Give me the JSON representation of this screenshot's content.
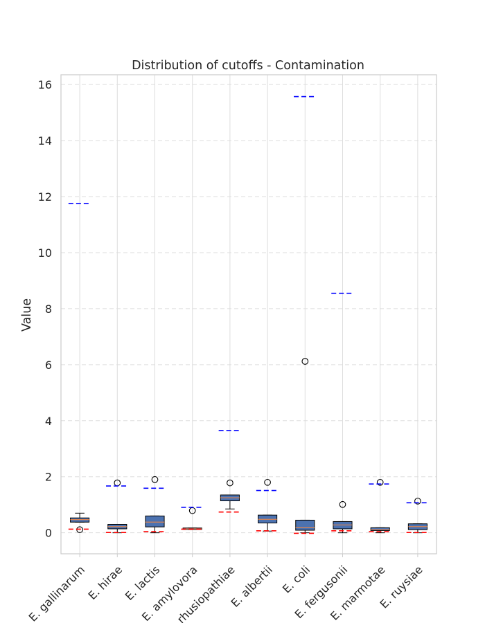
{
  "chart_data": {
    "type": "box",
    "title": "Distribution of cutoffs - Contamination",
    "xlabel": "",
    "ylabel": "Value",
    "ylim": [
      -0.75,
      16.35
    ],
    "yticks": [
      0,
      2,
      4,
      6,
      8,
      10,
      12,
      14,
      16
    ],
    "grid": true,
    "categories": [
      "E. gallinarum",
      "E. hirae",
      "E. lactis",
      "E. amylovora",
      "E. rhusiopathiae",
      "E. albertii",
      "E. coli",
      "E. fergusonii",
      "E. marmotae",
      "E. ruysiae"
    ],
    "boxes": [
      {
        "q1": 0.38,
        "median": 0.47,
        "q3": 0.53,
        "whisker_low": 0.38,
        "whisker_high": 0.7,
        "outliers": [
          0.11
        ]
      },
      {
        "q1": 0.14,
        "median": 0.22,
        "q3": 0.3,
        "whisker_low": 0.0,
        "whisker_high": 0.3,
        "outliers": [
          1.78
        ]
      },
      {
        "q1": 0.21,
        "median": 0.38,
        "q3": 0.6,
        "whisker_low": 0.0,
        "whisker_high": 0.6,
        "outliers": [
          1.9
        ]
      },
      {
        "q1": 0.12,
        "median": 0.14,
        "q3": 0.17,
        "whisker_low": 0.12,
        "whisker_high": 0.17,
        "outliers": [
          0.79
        ]
      },
      {
        "q1": 1.14,
        "median": 1.25,
        "q3": 1.35,
        "whisker_low": 0.85,
        "whisker_high": 1.35,
        "outliers": [
          1.78
        ]
      },
      {
        "q1": 0.35,
        "median": 0.48,
        "q3": 0.63,
        "whisker_low": 0.06,
        "whisker_high": 0.63,
        "outliers": [
          1.8
        ]
      },
      {
        "q1": 0.09,
        "median": 0.18,
        "q3": 0.45,
        "whisker_low": 0.0,
        "whisker_high": 0.45,
        "outliers": [
          6.12
        ]
      },
      {
        "q1": 0.14,
        "median": 0.28,
        "q3": 0.4,
        "whisker_low": 0.0,
        "whisker_high": 0.4,
        "outliers": [
          1.01
        ]
      },
      {
        "q1": 0.08,
        "median": 0.12,
        "q3": 0.18,
        "whisker_low": 0.0,
        "whisker_high": 0.18,
        "outliers": [
          1.8
        ]
      },
      {
        "q1": 0.11,
        "median": 0.22,
        "q3": 0.32,
        "whisker_low": 0.0,
        "whisker_high": 0.32,
        "outliers": [
          1.13
        ]
      }
    ],
    "blue_cutoffs": [
      11.75,
      1.67,
      1.59,
      0.91,
      3.65,
      1.51,
      15.57,
      8.55,
      1.74,
      1.07
    ],
    "red_cutoffs": [
      0.13,
      0.01,
      0.04,
      0.13,
      0.74,
      0.07,
      -0.02,
      0.07,
      0.04,
      0.01
    ],
    "colors": {
      "box_fill": "#4c72b0",
      "median": "#dd8452",
      "blue_line": "#0000ff",
      "red_line": "#ff0000",
      "grid": "#dddddd",
      "spine": "#cccccc",
      "text": "#262626"
    }
  }
}
